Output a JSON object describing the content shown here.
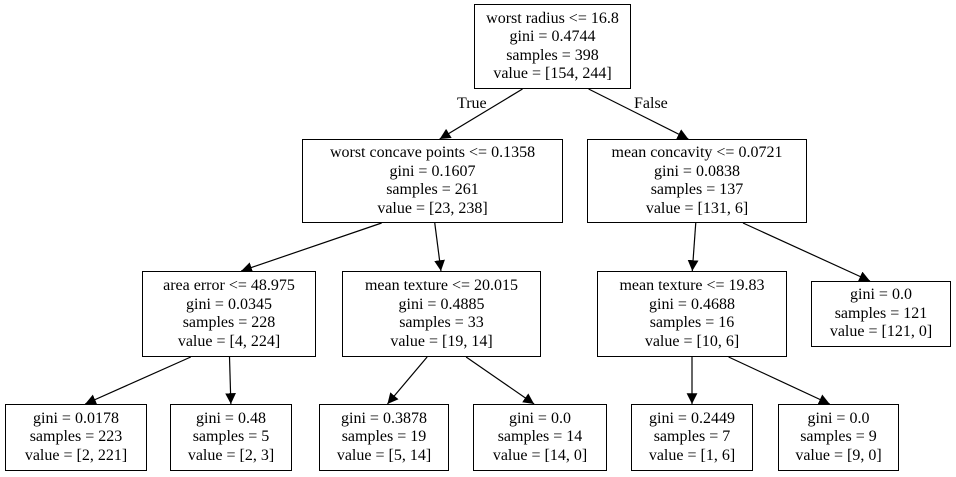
{
  "tree": {
    "nodes": [
      {
        "id": "n0",
        "lines": [
          "worst radius <= 16.8",
          "gini = 0.4744",
          "samples = 398",
          "value = [154, 244]"
        ]
      },
      {
        "id": "n1",
        "lines": [
          "worst concave points <= 0.1358",
          "gini = 0.1607",
          "samples = 261",
          "value = [23, 238]"
        ]
      },
      {
        "id": "n2",
        "lines": [
          "mean concavity <= 0.0721",
          "gini = 0.0838",
          "samples = 137",
          "value = [131, 6]"
        ]
      },
      {
        "id": "n3",
        "lines": [
          "area error <= 48.975",
          "gini = 0.0345",
          "samples = 228",
          "value = [4, 224]"
        ]
      },
      {
        "id": "n4",
        "lines": [
          "mean texture <= 20.015",
          "gini = 0.4885",
          "samples = 33",
          "value = [19, 14]"
        ]
      },
      {
        "id": "n5",
        "lines": [
          "mean texture <= 19.83",
          "gini = 0.4688",
          "samples = 16",
          "value = [10, 6]"
        ]
      },
      {
        "id": "n6",
        "lines": [
          "gini = 0.0",
          "samples = 121",
          "value = [121, 0]"
        ]
      },
      {
        "id": "n7",
        "lines": [
          "gini = 0.0178",
          "samples = 223",
          "value = [2, 221]"
        ]
      },
      {
        "id": "n8",
        "lines": [
          "gini = 0.48",
          "samples = 5",
          "value = [2, 3]"
        ]
      },
      {
        "id": "n9",
        "lines": [
          "gini = 0.3878",
          "samples = 19",
          "value = [5, 14]"
        ]
      },
      {
        "id": "n10",
        "lines": [
          "gini = 0.0",
          "samples = 14",
          "value = [14, 0]"
        ]
      },
      {
        "id": "n11",
        "lines": [
          "gini = 0.2449",
          "samples = 7",
          "value = [1, 6]"
        ]
      },
      {
        "id": "n12",
        "lines": [
          "gini = 0.0",
          "samples = 9",
          "value = [9, 0]"
        ]
      }
    ],
    "edges": [
      {
        "from": "n0",
        "to": "n1",
        "label": "True"
      },
      {
        "from": "n0",
        "to": "n2",
        "label": "False"
      },
      {
        "from": "n1",
        "to": "n3",
        "label": ""
      },
      {
        "from": "n1",
        "to": "n4",
        "label": ""
      },
      {
        "from": "n2",
        "to": "n5",
        "label": ""
      },
      {
        "from": "n2",
        "to": "n6",
        "label": ""
      },
      {
        "from": "n3",
        "to": "n7",
        "label": ""
      },
      {
        "from": "n3",
        "to": "n8",
        "label": ""
      },
      {
        "from": "n4",
        "to": "n9",
        "label": ""
      },
      {
        "from": "n4",
        "to": "n10",
        "label": ""
      },
      {
        "from": "n5",
        "to": "n11",
        "label": ""
      },
      {
        "from": "n5",
        "to": "n12",
        "label": ""
      }
    ]
  }
}
